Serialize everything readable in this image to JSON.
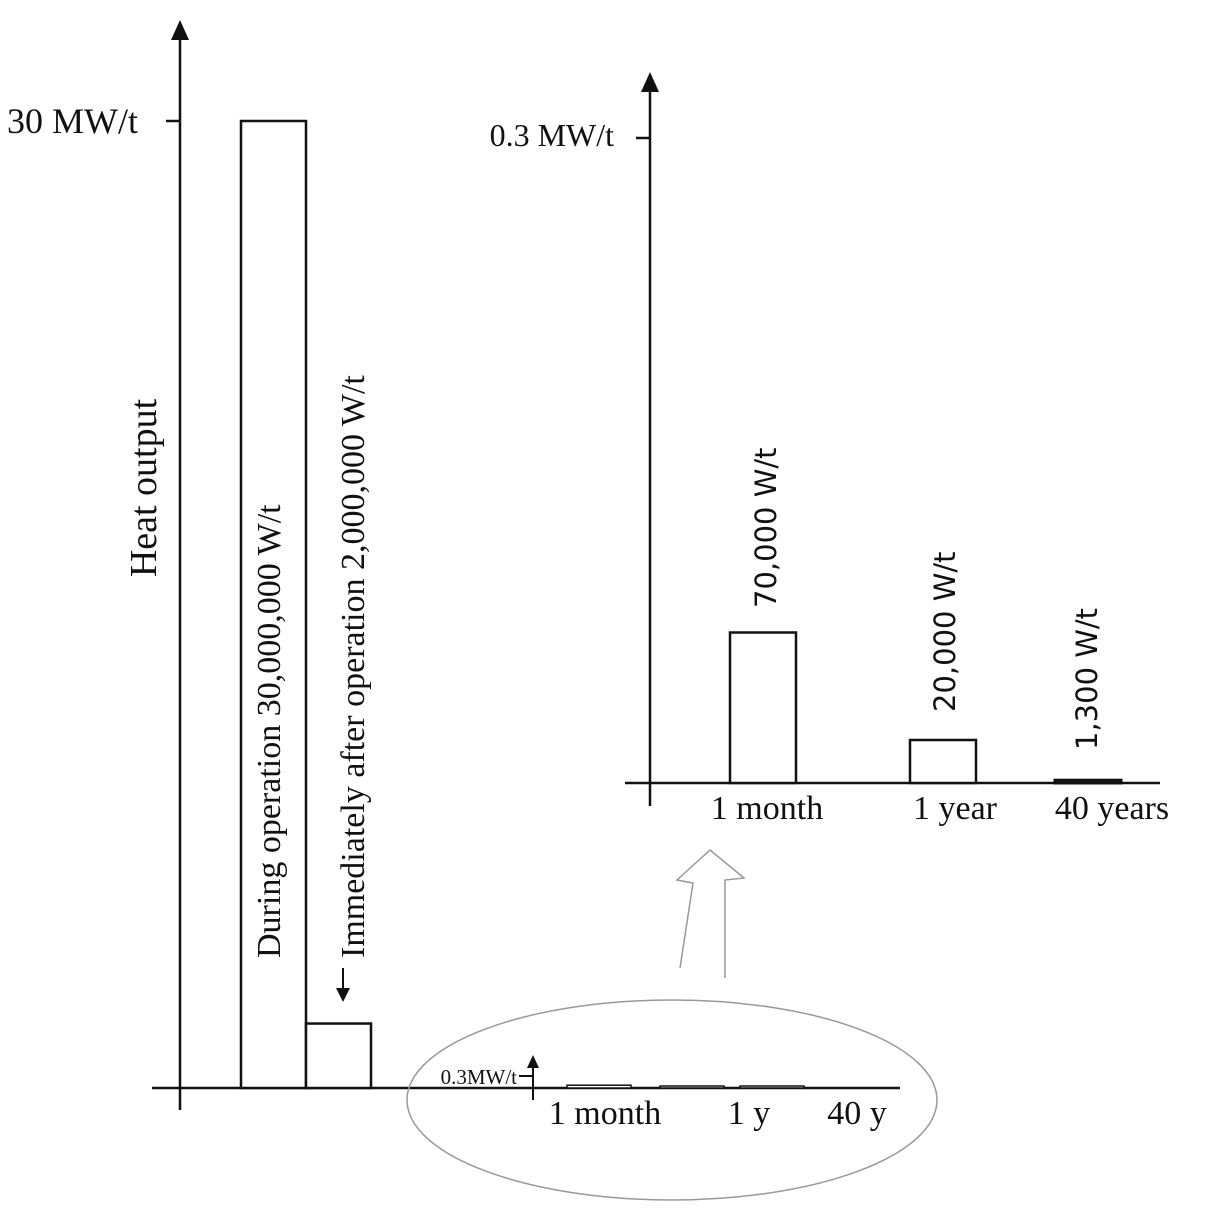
{
  "chart_data": [
    {
      "type": "bar",
      "ylabel": "Heat output",
      "y_tick_label": "30 MW/t",
      "y_tick_value": 30000000,
      "categories": [
        "During operation",
        "Immediately after operation"
      ],
      "values": [
        30000000,
        2000000
      ],
      "bar_labels": [
        "During operation  30,000,000 W/t",
        "Immediately after operation  2,000,000 W/t"
      ],
      "inset_tick_label": "0.3MW/t",
      "inset_categories": [
        "1 month",
        "1 y",
        "40 y"
      ],
      "inset_values": [
        70000,
        20000,
        1300
      ]
    },
    {
      "type": "bar",
      "y_tick_label": "0.3 MW/t",
      "y_tick_value": 300000,
      "categories": [
        "1 month",
        "1 year",
        "40 years"
      ],
      "values": [
        70000,
        20000,
        1300
      ],
      "bar_labels": [
        "70,000 W/t",
        "20,000 W/t",
        "1,300 W/t"
      ]
    }
  ]
}
